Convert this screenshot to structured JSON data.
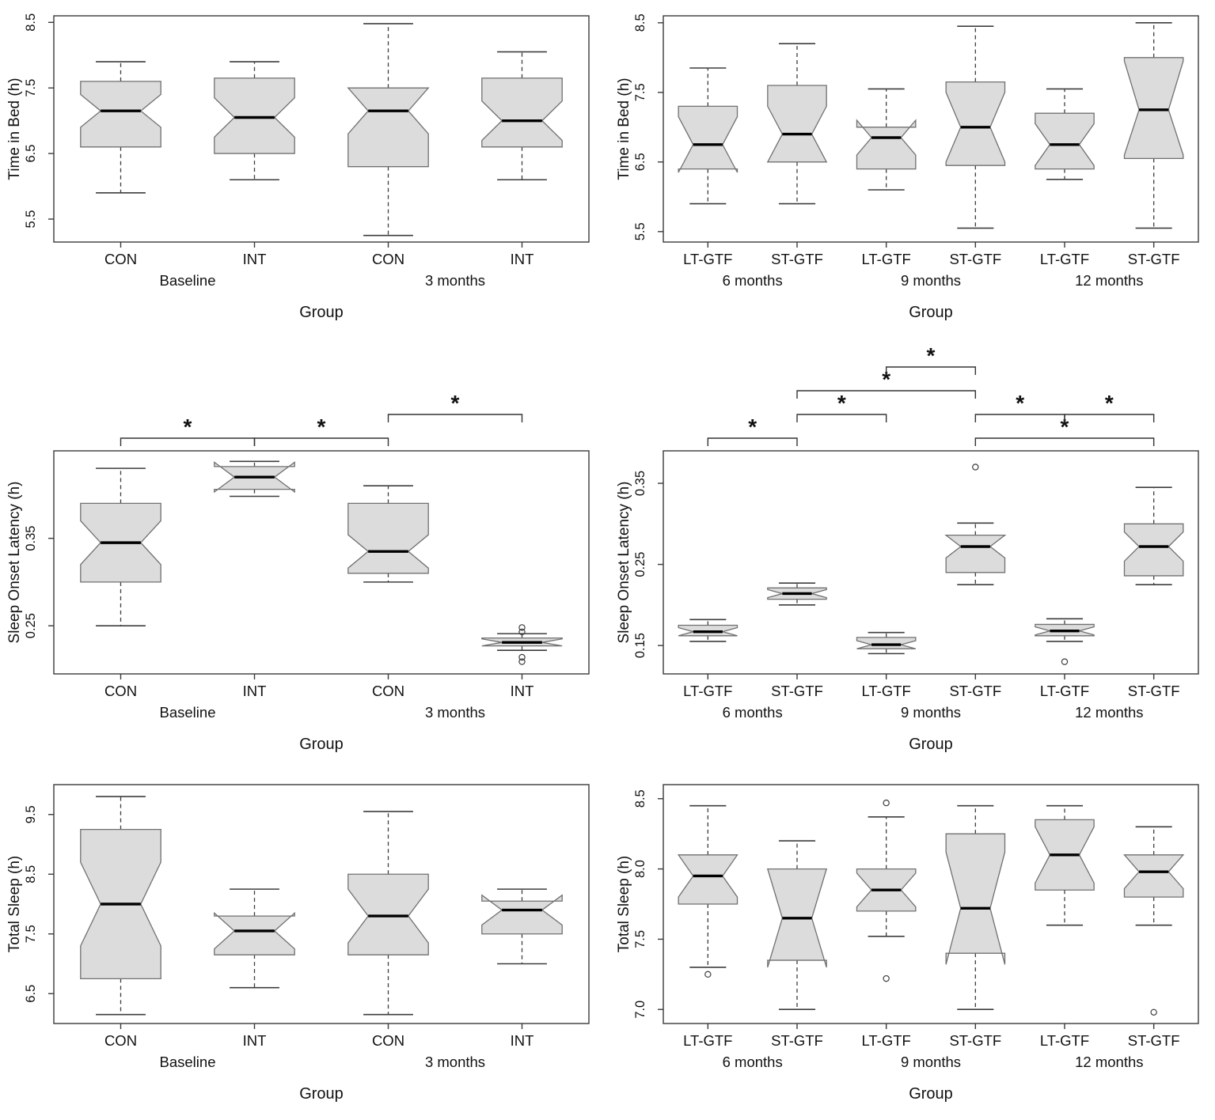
{
  "figure": {
    "background": "#ffffff",
    "colors": {
      "box_fill": "#dcdcdc",
      "box_stroke": "#707070",
      "median": "#000000",
      "whisker": "#3d3d3d",
      "frame": "#3a3a3a",
      "text": "#111111",
      "bracket": "#333333"
    }
  },
  "chart_data": [
    {
      "id": "time-in-bed-con-int",
      "type": "boxplot",
      "ylabel": "Time in Bed (h)",
      "xlabel": "Group",
      "ylim": [
        5.15,
        8.6
      ],
      "yticks": [
        {
          "v": 5.5,
          "label": "5.5"
        },
        {
          "v": 6.5,
          "label": "6.5"
        },
        {
          "v": 7.5,
          "label": "7.5"
        },
        {
          "v": 8.5,
          "label": "8.5"
        }
      ],
      "categories": [
        "CON",
        "INT",
        "CON",
        "INT"
      ],
      "group_labels": [
        {
          "text": "Baseline",
          "from": 0,
          "to": 1
        },
        {
          "text": "3 months",
          "from": 2,
          "to": 3
        }
      ],
      "boxes": [
        {
          "low": 5.9,
          "q1": 6.6,
          "median": 7.15,
          "q3": 7.6,
          "high": 7.9,
          "notch_low": 6.9,
          "notch_high": 7.4,
          "outliers": []
        },
        {
          "low": 6.1,
          "q1": 6.5,
          "median": 7.05,
          "q3": 7.65,
          "high": 7.9,
          "notch_low": 6.75,
          "notch_high": 7.35,
          "outliers": []
        },
        {
          "low": 5.25,
          "q1": 6.3,
          "median": 7.15,
          "q3": 7.5,
          "high": 8.48,
          "notch_low": 6.8,
          "notch_high": 7.5,
          "outliers": []
        },
        {
          "low": 6.1,
          "q1": 6.6,
          "median": 7.0,
          "q3": 7.65,
          "high": 8.05,
          "notch_low": 6.7,
          "notch_high": 7.3,
          "outliers": []
        }
      ],
      "brackets": []
    },
    {
      "id": "time-in-bed-gtf",
      "type": "boxplot",
      "ylabel": "Time in Bed (h)",
      "xlabel": "Group",
      "ylim": [
        5.35,
        8.6
      ],
      "yticks": [
        {
          "v": 5.5,
          "label": "5.5"
        },
        {
          "v": 6.5,
          "label": "6.5"
        },
        {
          "v": 7.5,
          "label": "7.5"
        },
        {
          "v": 8.5,
          "label": "8.5"
        }
      ],
      "categories": [
        "LT-GTF",
        "ST-GTF",
        "LT-GTF",
        "ST-GTF",
        "LT-GTF",
        "ST-GTF"
      ],
      "group_labels": [
        {
          "text": "6 months",
          "from": 0,
          "to": 1
        },
        {
          "text": "9 months",
          "from": 2,
          "to": 3
        },
        {
          "text": "12 months",
          "from": 4,
          "to": 5
        }
      ],
      "boxes": [
        {
          "low": 5.9,
          "q1": 6.4,
          "median": 6.75,
          "q3": 7.3,
          "high": 7.85,
          "notch_low": 6.35,
          "notch_high": 7.15,
          "outliers": []
        },
        {
          "low": 5.9,
          "q1": 6.5,
          "median": 6.9,
          "q3": 7.6,
          "high": 8.2,
          "notch_low": 6.5,
          "notch_high": 7.3,
          "outliers": []
        },
        {
          "low": 6.1,
          "q1": 6.4,
          "median": 6.85,
          "q3": 7.0,
          "high": 7.55,
          "notch_low": 6.6,
          "notch_high": 7.1,
          "outliers": []
        },
        {
          "low": 5.55,
          "q1": 6.45,
          "median": 7.0,
          "q3": 7.65,
          "high": 8.45,
          "notch_low": 6.5,
          "notch_high": 7.5,
          "outliers": []
        },
        {
          "low": 6.25,
          "q1": 6.4,
          "median": 6.75,
          "q3": 7.2,
          "high": 7.55,
          "notch_low": 6.45,
          "notch_high": 7.05,
          "outliers": []
        },
        {
          "low": 5.55,
          "q1": 6.55,
          "median": 7.25,
          "q3": 8.0,
          "high": 8.5,
          "notch_low": 6.6,
          "notch_high": 7.95,
          "outliers": []
        }
      ],
      "brackets": []
    },
    {
      "id": "sleep-onset-latency-con-int",
      "type": "boxplot",
      "ylabel": "Sleep Onset Latency (h)",
      "xlabel": "Group",
      "ylim": [
        0.195,
        0.45
      ],
      "yticks": [
        {
          "v": 0.25,
          "label": "0.25"
        },
        {
          "v": 0.35,
          "label": "0.35"
        }
      ],
      "categories": [
        "CON",
        "INT",
        "CON",
        "INT"
      ],
      "group_labels": [
        {
          "text": "Baseline",
          "from": 0,
          "to": 1
        },
        {
          "text": "3 months",
          "from": 2,
          "to": 3
        }
      ],
      "boxes": [
        {
          "low": 0.25,
          "q1": 0.3,
          "median": 0.345,
          "q3": 0.39,
          "high": 0.43,
          "notch_low": 0.32,
          "notch_high": 0.37,
          "outliers": []
        },
        {
          "low": 0.398,
          "q1": 0.406,
          "median": 0.42,
          "q3": 0.432,
          "high": 0.438,
          "notch_low": 0.403,
          "notch_high": 0.437,
          "outliers": []
        },
        {
          "low": 0.3,
          "q1": 0.31,
          "median": 0.335,
          "q3": 0.39,
          "high": 0.41,
          "notch_low": 0.316,
          "notch_high": 0.354,
          "outliers": []
        },
        {
          "low": 0.222,
          "q1": 0.227,
          "median": 0.231,
          "q3": 0.236,
          "high": 0.241,
          "notch_low": 0.227,
          "notch_high": 0.235,
          "outliers": [
            0.248,
            0.243,
            0.214,
            0.209
          ]
        }
      ],
      "brackets": [
        {
          "from": 0,
          "to": 1,
          "level": 0,
          "label": "*"
        },
        {
          "from": 1,
          "to": 2,
          "level": 0,
          "label": "*"
        },
        {
          "from": 2,
          "to": 3,
          "level": 1,
          "label": "*"
        }
      ]
    },
    {
      "id": "sleep-onset-latency-gtf",
      "type": "boxplot",
      "ylabel": "Sleep Onset Latency (h)",
      "xlabel": "Group",
      "ylim": [
        0.115,
        0.39
      ],
      "yticks": [
        {
          "v": 0.15,
          "label": "0.15"
        },
        {
          "v": 0.25,
          "label": "0.25"
        },
        {
          "v": 0.35,
          "label": "0.35"
        }
      ],
      "categories": [
        "LT-GTF",
        "ST-GTF",
        "LT-GTF",
        "ST-GTF",
        "LT-GTF",
        "ST-GTF"
      ],
      "group_labels": [
        {
          "text": "6 months",
          "from": 0,
          "to": 1
        },
        {
          "text": "9 months",
          "from": 2,
          "to": 3
        },
        {
          "text": "12 months",
          "from": 4,
          "to": 5
        }
      ],
      "boxes": [
        {
          "low": 0.155,
          "q1": 0.162,
          "median": 0.167,
          "q3": 0.175,
          "high": 0.182,
          "notch_low": 0.162,
          "notch_high": 0.172,
          "outliers": []
        },
        {
          "low": 0.2,
          "q1": 0.207,
          "median": 0.214,
          "q3": 0.221,
          "high": 0.227,
          "notch_low": 0.209,
          "notch_high": 0.219,
          "outliers": []
        },
        {
          "low": 0.14,
          "q1": 0.146,
          "median": 0.151,
          "q3": 0.16,
          "high": 0.166,
          "notch_low": 0.146,
          "notch_high": 0.156,
          "outliers": []
        },
        {
          "low": 0.225,
          "q1": 0.24,
          "median": 0.272,
          "q3": 0.286,
          "high": 0.301,
          "notch_low": 0.258,
          "notch_high": 0.286,
          "outliers": [
            0.37
          ]
        },
        {
          "low": 0.155,
          "q1": 0.162,
          "median": 0.168,
          "q3": 0.176,
          "high": 0.183,
          "notch_low": 0.163,
          "notch_high": 0.173,
          "outliers": [
            0.13
          ]
        },
        {
          "low": 0.225,
          "q1": 0.236,
          "median": 0.272,
          "q3": 0.3,
          "high": 0.345,
          "notch_low": 0.254,
          "notch_high": 0.29,
          "outliers": []
        }
      ],
      "brackets": [
        {
          "from": 0,
          "to": 1,
          "level": 0,
          "label": "*"
        },
        {
          "from": 1,
          "to": 2,
          "level": 1,
          "label": "*"
        },
        {
          "from": 1,
          "to": 3,
          "level": 2,
          "label": "*"
        },
        {
          "from": 2,
          "to": 3,
          "level": 3,
          "label": "*"
        },
        {
          "from": 3,
          "to": 4,
          "level": 1,
          "label": "*"
        },
        {
          "from": 3,
          "to": 5,
          "level": 0,
          "label": "*"
        },
        {
          "from": 4,
          "to": 5,
          "level": 1,
          "label": "*"
        }
      ]
    },
    {
      "id": "total-sleep-con-int",
      "type": "boxplot",
      "ylabel": "Total Sleep (h)",
      "xlabel": "Group",
      "ylim": [
        6.0,
        10.0
      ],
      "yticks": [
        {
          "v": 6.5,
          "label": "6.5"
        },
        {
          "v": 7.5,
          "label": "7.5"
        },
        {
          "v": 8.5,
          "label": "8.5"
        },
        {
          "v": 9.5,
          "label": "9.5"
        }
      ],
      "categories": [
        "CON",
        "INT",
        "CON",
        "INT"
      ],
      "group_labels": [
        {
          "text": "Baseline",
          "from": 0,
          "to": 1
        },
        {
          "text": "3 months",
          "from": 2,
          "to": 3
        }
      ],
      "boxes": [
        {
          "low": 6.15,
          "q1": 6.75,
          "median": 8.0,
          "q3": 9.25,
          "high": 9.8,
          "notch_low": 7.3,
          "notch_high": 8.7,
          "outliers": []
        },
        {
          "low": 6.6,
          "q1": 7.15,
          "median": 7.55,
          "q3": 7.8,
          "high": 8.25,
          "notch_low": 7.25,
          "notch_high": 7.85,
          "outliers": []
        },
        {
          "low": 6.15,
          "q1": 7.15,
          "median": 7.8,
          "q3": 8.5,
          "high": 9.55,
          "notch_low": 7.35,
          "notch_high": 8.25,
          "outliers": []
        },
        {
          "low": 7.0,
          "q1": 7.5,
          "median": 7.9,
          "q3": 8.05,
          "high": 8.25,
          "notch_low": 7.65,
          "notch_high": 8.15,
          "outliers": []
        }
      ],
      "brackets": []
    },
    {
      "id": "total-sleep-gtf",
      "type": "boxplot",
      "ylabel": "Total Sleep (h)",
      "xlabel": "Group",
      "ylim": [
        6.9,
        8.6
      ],
      "yticks": [
        {
          "v": 7.0,
          "label": "7.0"
        },
        {
          "v": 7.5,
          "label": "7.5"
        },
        {
          "v": 8.0,
          "label": "8.0"
        },
        {
          "v": 8.5,
          "label": "8.5"
        }
      ],
      "categories": [
        "LT-GTF",
        "ST-GTF",
        "LT-GTF",
        "ST-GTF",
        "LT-GTF",
        "ST-GTF"
      ],
      "group_labels": [
        {
          "text": "6 months",
          "from": 0,
          "to": 1
        },
        {
          "text": "9 months",
          "from": 2,
          "to": 3
        },
        {
          "text": "12 months",
          "from": 4,
          "to": 5
        }
      ],
      "boxes": [
        {
          "low": 7.3,
          "q1": 7.75,
          "median": 7.95,
          "q3": 8.1,
          "high": 8.45,
          "notch_low": 7.8,
          "notch_high": 8.1,
          "outliers": [
            7.25
          ]
        },
        {
          "low": 7.0,
          "q1": 7.35,
          "median": 7.65,
          "q3": 8.0,
          "high": 8.2,
          "notch_low": 7.3,
          "notch_high": 8.0,
          "outliers": []
        },
        {
          "low": 7.52,
          "q1": 7.7,
          "median": 7.85,
          "q3": 8.0,
          "high": 8.37,
          "notch_low": 7.73,
          "notch_high": 7.97,
          "outliers": [
            8.47,
            7.22
          ]
        },
        {
          "low": 7.0,
          "q1": 7.4,
          "median": 7.72,
          "q3": 8.25,
          "high": 8.45,
          "notch_low": 7.32,
          "notch_high": 8.12,
          "outliers": []
        },
        {
          "low": 7.6,
          "q1": 7.85,
          "median": 8.1,
          "q3": 8.35,
          "high": 8.45,
          "notch_low": 7.9,
          "notch_high": 8.3,
          "outliers": []
        },
        {
          "low": 7.6,
          "q1": 7.8,
          "median": 7.98,
          "q3": 8.1,
          "high": 8.3,
          "notch_low": 7.86,
          "notch_high": 8.1,
          "outliers": [
            6.98
          ]
        }
      ],
      "brackets": []
    }
  ]
}
